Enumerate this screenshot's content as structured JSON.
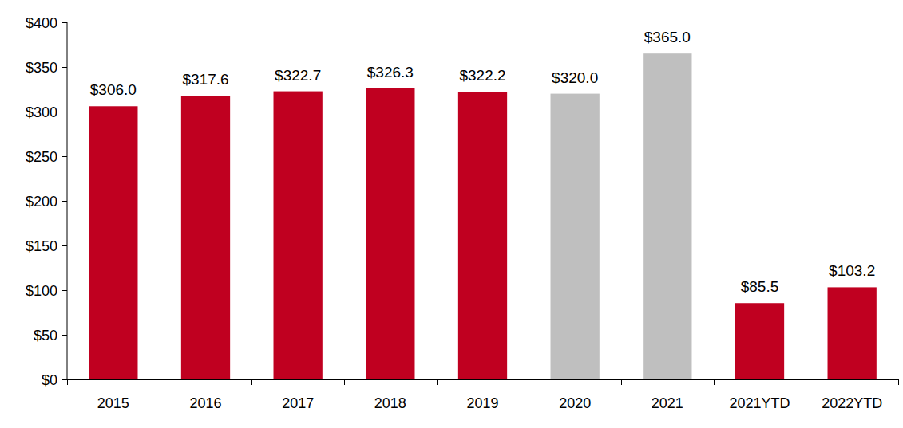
{
  "chart_data": {
    "type": "bar",
    "categories": [
      "2015",
      "2016",
      "2017",
      "2018",
      "2019",
      "2020",
      "2021",
      "2021YTD",
      "2022YTD"
    ],
    "values": [
      306.0,
      317.6,
      322.7,
      326.3,
      322.2,
      320.0,
      365.0,
      85.5,
      103.2
    ],
    "value_labels": [
      "$306.0",
      "$317.6",
      "$322.7",
      "$326.3",
      "$322.2",
      "$320.0",
      "$365.0",
      "$85.5",
      "$103.2"
    ],
    "colors": [
      "#c00020",
      "#c00020",
      "#c00020",
      "#c00020",
      "#c00020",
      "#bfbfbf",
      "#bfbfbf",
      "#c00020",
      "#c00020"
    ],
    "data_labels": true,
    "grid": false,
    "ylim": [
      0,
      400
    ],
    "yticks": [
      {
        "value": 0,
        "label": "$0"
      },
      {
        "value": 50,
        "label": "$50"
      },
      {
        "value": 100,
        "label": "$100"
      },
      {
        "value": 150,
        "label": "$150"
      },
      {
        "value": 200,
        "label": "$200"
      },
      {
        "value": 250,
        "label": "$250"
      },
      {
        "value": 300,
        "label": "$300"
      },
      {
        "value": 350,
        "label": "$350"
      },
      {
        "value": 400,
        "label": "$400"
      }
    ]
  }
}
